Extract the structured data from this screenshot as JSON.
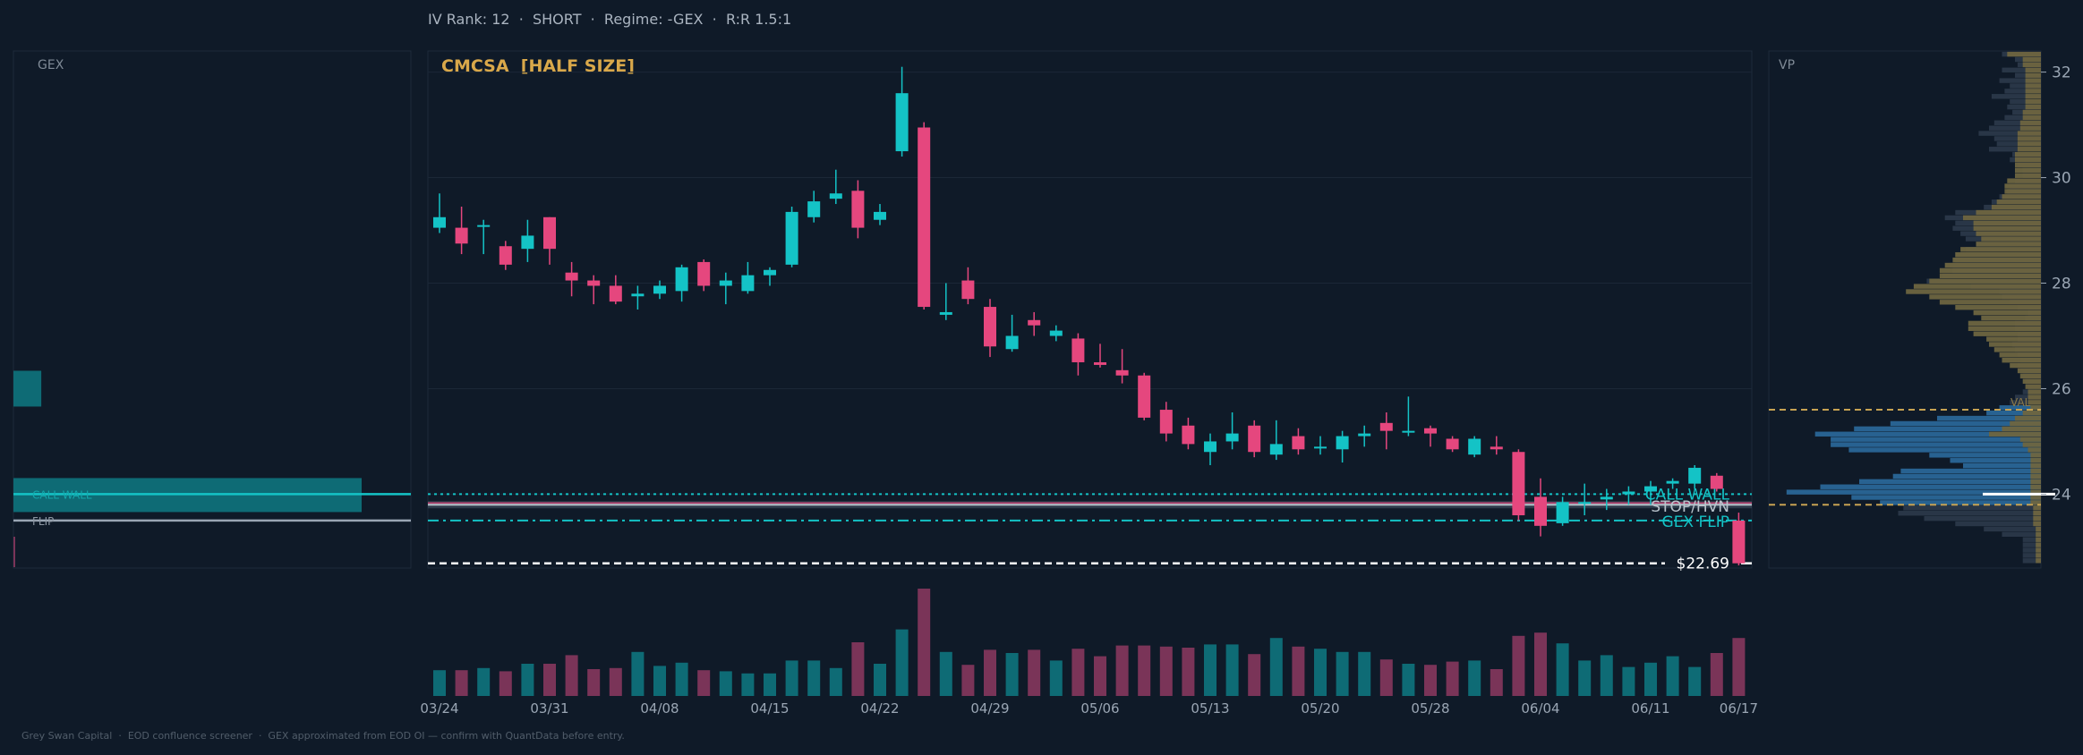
{
  "header": {
    "text": "IV Rank: 12  ·  SHORT  ·  Regime: -GEX  ·  R:R 1.5:1"
  },
  "footer": {
    "text": "Grey Swan Capital  ·  EOD confluence screener  ·  GEX approximated from EOD OI — confirm with QuantData before entry."
  },
  "colors": {
    "background": "#0f1a28",
    "panel_border": "#1d2a3a",
    "up": "#14c3c6",
    "down": "#e5477e",
    "up_volume": "#0e6b75",
    "down_volume": "#7a3458",
    "title": "#d9a84a",
    "value_area": "#c7a252",
    "vp_buy": "#2b6a9c",
    "vp_sell": "#6e6540"
  },
  "gex_panel": {
    "label": "GEX",
    "call_wall_label": "CALL WALL",
    "flip_label": "FLIP",
    "bars": [
      {
        "price": 26.0,
        "magnitude": 0.08
      },
      {
        "price": 24.0,
        "magnitude": 1.0
      }
    ]
  },
  "vp_panel": {
    "label": "VP",
    "val_label": "VAL",
    "value_area_high": 25.6,
    "value_area_low": 23.8,
    "poc": 24.0
  },
  "chart_data": {
    "type": "candlestick",
    "title": "CMCSA  [HALF SIZE]",
    "ylim": [
      22.6,
      32.4
    ],
    "yticks": [
      24,
      26,
      28,
      30,
      32
    ],
    "x_tick_labels": [
      {
        "index": 0,
        "label": "03/24"
      },
      {
        "index": 5,
        "label": "03/31"
      },
      {
        "index": 10,
        "label": "04/08"
      },
      {
        "index": 15,
        "label": "04/15"
      },
      {
        "index": 20,
        "label": "04/22"
      },
      {
        "index": 25,
        "label": "04/29"
      },
      {
        "index": 30,
        "label": "05/06"
      },
      {
        "index": 35,
        "label": "05/13"
      },
      {
        "index": 40,
        "label": "05/20"
      },
      {
        "index": 45,
        "label": "05/28"
      },
      {
        "index": 50,
        "label": "06/04"
      },
      {
        "index": 55,
        "label": "06/11"
      },
      {
        "index": 59,
        "label": "06/17"
      }
    ],
    "candles": [
      {
        "o": 29.05,
        "h": 29.7,
        "l": 28.95,
        "c": 29.25,
        "v": 0.24
      },
      {
        "o": 29.05,
        "h": 29.45,
        "l": 28.55,
        "c": 28.75,
        "v": 0.24
      },
      {
        "o": 29.1,
        "h": 29.2,
        "l": 28.55,
        "c": 29.1,
        "v": 0.26
      },
      {
        "o": 28.7,
        "h": 28.8,
        "l": 28.25,
        "c": 28.35,
        "v": 0.23
      },
      {
        "o": 28.65,
        "h": 29.2,
        "l": 28.4,
        "c": 28.9,
        "v": 0.3
      },
      {
        "o": 29.25,
        "h": 29.25,
        "l": 28.35,
        "c": 28.65,
        "v": 0.3
      },
      {
        "o": 28.2,
        "h": 28.4,
        "l": 27.75,
        "c": 28.05,
        "v": 0.38
      },
      {
        "o": 28.05,
        "h": 28.15,
        "l": 27.6,
        "c": 27.95,
        "v": 0.25
      },
      {
        "o": 27.95,
        "h": 28.15,
        "l": 27.6,
        "c": 27.65,
        "v": 0.26
      },
      {
        "o": 27.75,
        "h": 27.95,
        "l": 27.5,
        "c": 27.8,
        "v": 0.41
      },
      {
        "o": 27.8,
        "h": 28.05,
        "l": 27.7,
        "c": 27.95,
        "v": 0.28
      },
      {
        "o": 27.85,
        "h": 28.35,
        "l": 27.65,
        "c": 28.3,
        "v": 0.31
      },
      {
        "o": 28.4,
        "h": 28.45,
        "l": 27.85,
        "c": 27.95,
        "v": 0.24
      },
      {
        "o": 27.95,
        "h": 28.2,
        "l": 27.6,
        "c": 28.05,
        "v": 0.23
      },
      {
        "o": 27.85,
        "h": 28.4,
        "l": 27.8,
        "c": 28.15,
        "v": 0.21
      },
      {
        "o": 28.15,
        "h": 28.3,
        "l": 27.95,
        "c": 28.25,
        "v": 0.21
      },
      {
        "o": 28.35,
        "h": 29.45,
        "l": 28.3,
        "c": 29.35,
        "v": 0.33
      },
      {
        "o": 29.25,
        "h": 29.75,
        "l": 29.15,
        "c": 29.55,
        "v": 0.33
      },
      {
        "o": 29.6,
        "h": 30.15,
        "l": 29.5,
        "c": 29.7,
        "v": 0.26
      },
      {
        "o": 29.75,
        "h": 29.95,
        "l": 28.85,
        "c": 29.05,
        "v": 0.5
      },
      {
        "o": 29.2,
        "h": 29.5,
        "l": 29.1,
        "c": 29.35,
        "v": 0.3
      },
      {
        "o": 30.5,
        "h": 32.1,
        "l": 30.4,
        "c": 31.6,
        "v": 0.62
      },
      {
        "o": 30.95,
        "h": 31.05,
        "l": 27.5,
        "c": 27.55,
        "v": 1.0
      },
      {
        "o": 27.4,
        "h": 28.0,
        "l": 27.3,
        "c": 27.45,
        "v": 0.41
      },
      {
        "o": 28.05,
        "h": 28.3,
        "l": 27.6,
        "c": 27.7,
        "v": 0.29
      },
      {
        "o": 27.55,
        "h": 27.7,
        "l": 26.6,
        "c": 26.8,
        "v": 0.43
      },
      {
        "o": 26.75,
        "h": 27.4,
        "l": 26.7,
        "c": 27.0,
        "v": 0.4
      },
      {
        "o": 27.3,
        "h": 27.45,
        "l": 27.0,
        "c": 27.2,
        "v": 0.43
      },
      {
        "o": 27.0,
        "h": 27.2,
        "l": 26.9,
        "c": 27.1,
        "v": 0.33
      },
      {
        "o": 26.95,
        "h": 27.05,
        "l": 26.25,
        "c": 26.5,
        "v": 0.44
      },
      {
        "o": 26.5,
        "h": 26.85,
        "l": 26.4,
        "c": 26.45,
        "v": 0.37
      },
      {
        "o": 26.35,
        "h": 26.75,
        "l": 26.1,
        "c": 26.25,
        "v": 0.47
      },
      {
        "o": 26.25,
        "h": 26.3,
        "l": 25.4,
        "c": 25.45,
        "v": 0.47
      },
      {
        "o": 25.6,
        "h": 25.75,
        "l": 25.0,
        "c": 25.15,
        "v": 0.46
      },
      {
        "o": 25.3,
        "h": 25.45,
        "l": 24.85,
        "c": 24.95,
        "v": 0.45
      },
      {
        "o": 24.8,
        "h": 25.15,
        "l": 24.55,
        "c": 25.0,
        "v": 0.48
      },
      {
        "o": 25.0,
        "h": 25.55,
        "l": 24.85,
        "c": 25.15,
        "v": 0.48
      },
      {
        "o": 25.3,
        "h": 25.4,
        "l": 24.7,
        "c": 24.8,
        "v": 0.39
      },
      {
        "o": 24.75,
        "h": 25.4,
        "l": 24.65,
        "c": 24.95,
        "v": 0.54
      },
      {
        "o": 25.1,
        "h": 25.25,
        "l": 24.75,
        "c": 24.85,
        "v": 0.46
      },
      {
        "o": 24.9,
        "h": 25.1,
        "l": 24.75,
        "c": 24.9,
        "v": 0.44
      },
      {
        "o": 24.85,
        "h": 25.2,
        "l": 24.6,
        "c": 25.1,
        "v": 0.41
      },
      {
        "o": 25.1,
        "h": 25.3,
        "l": 24.9,
        "c": 25.15,
        "v": 0.41
      },
      {
        "o": 25.35,
        "h": 25.55,
        "l": 24.85,
        "c": 25.2,
        "v": 0.34
      },
      {
        "o": 25.2,
        "h": 25.85,
        "l": 25.1,
        "c": 25.2,
        "v": 0.3
      },
      {
        "o": 25.25,
        "h": 25.3,
        "l": 24.9,
        "c": 25.15,
        "v": 0.29
      },
      {
        "o": 25.05,
        "h": 25.1,
        "l": 24.8,
        "c": 24.85,
        "v": 0.32
      },
      {
        "o": 24.75,
        "h": 25.1,
        "l": 24.7,
        "c": 25.05,
        "v": 0.33
      },
      {
        "o": 24.9,
        "h": 25.1,
        "l": 24.75,
        "c": 24.85,
        "v": 0.25
      },
      {
        "o": 24.8,
        "h": 24.85,
        "l": 23.5,
        "c": 23.6,
        "v": 0.56
      },
      {
        "o": 23.95,
        "h": 24.3,
        "l": 23.2,
        "c": 23.4,
        "v": 0.59
      },
      {
        "o": 23.45,
        "h": 23.95,
        "l": 23.4,
        "c": 23.85,
        "v": 0.49
      },
      {
        "o": 23.85,
        "h": 24.2,
        "l": 23.6,
        "c": 23.85,
        "v": 0.33
      },
      {
        "o": 23.9,
        "h": 24.1,
        "l": 23.7,
        "c": 23.95,
        "v": 0.38
      },
      {
        "o": 24.0,
        "h": 24.15,
        "l": 23.8,
        "c": 24.05,
        "v": 0.27
      },
      {
        "o": 24.05,
        "h": 24.25,
        "l": 23.8,
        "c": 24.15,
        "v": 0.31
      },
      {
        "o": 24.2,
        "h": 24.3,
        "l": 24.1,
        "c": 24.25,
        "v": 0.37
      },
      {
        "o": 24.2,
        "h": 24.55,
        "l": 24.1,
        "c": 24.5,
        "v": 0.27
      },
      {
        "o": 24.35,
        "h": 24.4,
        "l": 24.05,
        "c": 24.1,
        "v": 0.4
      },
      {
        "o": 23.5,
        "h": 23.65,
        "l": 22.65,
        "c": 22.69,
        "v": 0.54
      }
    ],
    "levels": [
      {
        "name": "call-wall",
        "label": "CALL WALL",
        "price": 24.0,
        "style": "dotted",
        "color": "#14c3c6"
      },
      {
        "name": "stop-hvn",
        "label": "STOP/HVN",
        "price": 23.8,
        "style": "solid",
        "color": "#b9c3cc"
      },
      {
        "name": "gex-flip",
        "label": "GEX FLIP",
        "price": 23.5,
        "style": "dashdot",
        "color": "#14c3c6"
      },
      {
        "name": "last-price",
        "label": "$22.69",
        "price": 22.69,
        "style": "dashed",
        "color": "#ffffff"
      }
    ],
    "volume_profile": [
      {
        "price": 32.3,
        "buy": 0.15,
        "sell": 0.13
      },
      {
        "price": 32.2,
        "buy": 0.1,
        "sell": 0.07
      },
      {
        "price": 32.1,
        "buy": 0.09,
        "sell": 0.07
      },
      {
        "price": 32.0,
        "buy": 0.15,
        "sell": 0.06
      },
      {
        "price": 31.9,
        "buy": 0.1,
        "sell": 0.06
      },
      {
        "price": 31.8,
        "buy": 0.16,
        "sell": 0.06
      },
      {
        "price": 31.7,
        "buy": 0.12,
        "sell": 0.06
      },
      {
        "price": 31.6,
        "buy": 0.14,
        "sell": 0.06
      },
      {
        "price": 31.5,
        "buy": 0.19,
        "sell": 0.06
      },
      {
        "price": 31.4,
        "buy": 0.12,
        "sell": 0.06
      },
      {
        "price": 31.3,
        "buy": 0.13,
        "sell": 0.06
      },
      {
        "price": 31.2,
        "buy": 0.11,
        "sell": 0.07
      },
      {
        "price": 31.1,
        "buy": 0.14,
        "sell": 0.07
      },
      {
        "price": 31.0,
        "buy": 0.18,
        "sell": 0.08
      },
      {
        "price": 30.9,
        "buy": 0.2,
        "sell": 0.08
      },
      {
        "price": 30.8,
        "buy": 0.24,
        "sell": 0.09
      },
      {
        "price": 30.7,
        "buy": 0.18,
        "sell": 0.09
      },
      {
        "price": 30.6,
        "buy": 0.17,
        "sell": 0.09
      },
      {
        "price": 30.5,
        "buy": 0.2,
        "sell": 0.09
      },
      {
        "price": 30.4,
        "buy": 0.11,
        "sell": 0.1
      },
      {
        "price": 30.3,
        "buy": 0.12,
        "sell": 0.1
      },
      {
        "price": 30.2,
        "buy": 0.09,
        "sell": 0.1
      },
      {
        "price": 30.1,
        "buy": 0.07,
        "sell": 0.1
      },
      {
        "price": 30.0,
        "buy": 0.07,
        "sell": 0.1
      },
      {
        "price": 29.9,
        "buy": 0.1,
        "sell": 0.13
      },
      {
        "price": 29.8,
        "buy": 0.12,
        "sell": 0.14
      },
      {
        "price": 29.7,
        "buy": 0.13,
        "sell": 0.14
      },
      {
        "price": 29.6,
        "buy": 0.16,
        "sell": 0.15
      },
      {
        "price": 29.5,
        "buy": 0.19,
        "sell": 0.17
      },
      {
        "price": 29.4,
        "buy": 0.22,
        "sell": 0.19
      },
      {
        "price": 29.3,
        "buy": 0.33,
        "sell": 0.25
      },
      {
        "price": 29.2,
        "buy": 0.37,
        "sell": 0.3
      },
      {
        "price": 29.1,
        "buy": 0.33,
        "sell": 0.26
      },
      {
        "price": 29.0,
        "buy": 0.34,
        "sell": 0.26
      },
      {
        "price": 28.9,
        "buy": 0.31,
        "sell": 0.25
      },
      {
        "price": 28.8,
        "buy": 0.29,
        "sell": 0.23
      },
      {
        "price": 28.7,
        "buy": 0.25,
        "sell": 0.25
      },
      {
        "price": 28.6,
        "buy": 0.29,
        "sell": 0.31
      },
      {
        "price": 28.5,
        "buy": 0.33,
        "sell": 0.33
      },
      {
        "price": 28.4,
        "buy": 0.33,
        "sell": 0.34
      },
      {
        "price": 28.3,
        "buy": 0.35,
        "sell": 0.37
      },
      {
        "price": 28.2,
        "buy": 0.34,
        "sell": 0.39
      },
      {
        "price": 28.1,
        "buy": 0.38,
        "sell": 0.39
      },
      {
        "price": 28.0,
        "buy": 0.44,
        "sell": 0.43
      },
      {
        "price": 27.9,
        "buy": 0.27,
        "sell": 0.49
      },
      {
        "price": 27.8,
        "buy": 0.16,
        "sell": 0.52
      },
      {
        "price": 27.7,
        "buy": 0.15,
        "sell": 0.43
      },
      {
        "price": 27.6,
        "buy": 0.12,
        "sell": 0.39
      },
      {
        "price": 27.5,
        "buy": 0.09,
        "sell": 0.33
      },
      {
        "price": 27.4,
        "buy": 0.05,
        "sell": 0.26
      },
      {
        "price": 27.3,
        "buy": 0.06,
        "sell": 0.23
      },
      {
        "price": 27.2,
        "buy": 0.1,
        "sell": 0.28
      },
      {
        "price": 27.1,
        "buy": 0.1,
        "sell": 0.28
      },
      {
        "price": 27.0,
        "buy": 0.09,
        "sell": 0.26
      },
      {
        "price": 26.9,
        "buy": 0.09,
        "sell": 0.21
      },
      {
        "price": 26.8,
        "buy": 0.11,
        "sell": 0.2
      },
      {
        "price": 26.7,
        "buy": 0.1,
        "sell": 0.18
      },
      {
        "price": 26.6,
        "buy": 0.09,
        "sell": 0.16
      },
      {
        "price": 26.5,
        "buy": 0.08,
        "sell": 0.15
      },
      {
        "price": 26.4,
        "buy": 0.09,
        "sell": 0.12
      },
      {
        "price": 26.3,
        "buy": 0.08,
        "sell": 0.09
      },
      {
        "price": 26.2,
        "buy": 0.07,
        "sell": 0.08
      },
      {
        "price": 26.1,
        "buy": 0.06,
        "sell": 0.07
      },
      {
        "price": 26.0,
        "buy": 0.05,
        "sell": 0.06
      },
      {
        "price": 25.9,
        "buy": 0.07,
        "sell": 0.05
      },
      {
        "price": 25.8,
        "buy": 0.1,
        "sell": 0.05
      },
      {
        "price": 25.7,
        "buy": 0.12,
        "sell": 0.05
      },
      {
        "price": 25.6,
        "buy": 0.16,
        "sell": 0.04
      },
      {
        "price": 25.5,
        "buy": 0.21,
        "sell": 0.07
      },
      {
        "price": 25.4,
        "buy": 0.4,
        "sell": 0.1
      },
      {
        "price": 25.3,
        "buy": 0.58,
        "sell": 0.12
      },
      {
        "price": 25.2,
        "buy": 0.72,
        "sell": 0.15
      },
      {
        "price": 25.1,
        "buy": 0.87,
        "sell": 0.2
      },
      {
        "price": 25.0,
        "buy": 0.81,
        "sell": 0.08
      },
      {
        "price": 24.9,
        "buy": 0.81,
        "sell": 0.07
      },
      {
        "price": 24.8,
        "buy": 0.74,
        "sell": 0.05
      },
      {
        "price": 24.7,
        "buy": 0.43,
        "sell": 0.04
      },
      {
        "price": 24.6,
        "buy": 0.35,
        "sell": 0.04
      },
      {
        "price": 24.5,
        "buy": 0.3,
        "sell": 0.04
      },
      {
        "price": 24.4,
        "buy": 0.54,
        "sell": 0.04
      },
      {
        "price": 24.3,
        "buy": 0.57,
        "sell": 0.04
      },
      {
        "price": 24.2,
        "buy": 0.7,
        "sell": 0.04
      },
      {
        "price": 24.1,
        "buy": 0.85,
        "sell": 0.04
      },
      {
        "price": 24.0,
        "buy": 0.98,
        "sell": 0.04
      },
      {
        "price": 23.9,
        "buy": 0.73,
        "sell": 0.04
      },
      {
        "price": 23.8,
        "buy": 0.62,
        "sell": 0.04
      },
      {
        "price": 23.7,
        "buy": 0.53,
        "sell": 0.03
      },
      {
        "price": 23.6,
        "buy": 0.55,
        "sell": 0.03
      },
      {
        "price": 23.5,
        "buy": 0.45,
        "sell": 0.03
      },
      {
        "price": 23.4,
        "buy": 0.33,
        "sell": 0.03
      },
      {
        "price": 23.3,
        "buy": 0.22,
        "sell": 0.02
      },
      {
        "price": 23.2,
        "buy": 0.15,
        "sell": 0.02
      },
      {
        "price": 23.1,
        "buy": 0.07,
        "sell": 0.02
      },
      {
        "price": 23.0,
        "buy": 0.07,
        "sell": 0.02
      },
      {
        "price": 22.9,
        "buy": 0.07,
        "sell": 0.02
      },
      {
        "price": 22.8,
        "buy": 0.07,
        "sell": 0.02
      },
      {
        "price": 22.7,
        "buy": 0.07,
        "sell": 0.02
      }
    ]
  }
}
